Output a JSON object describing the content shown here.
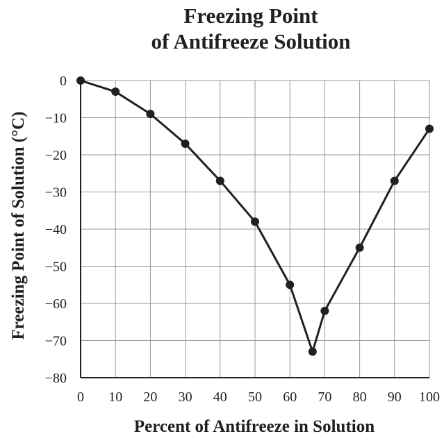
{
  "chart_data": {
    "type": "line",
    "title_lines": [
      "Freezing Point",
      "of Antifreeze Solution"
    ],
    "xlabel": "Percent of Antifreeze in Solution",
    "ylabel": "Freezing Point of Solution (°C)",
    "xlim": [
      0,
      100
    ],
    "ylim": [
      -80,
      0
    ],
    "x_ticks": [
      0,
      10,
      20,
      30,
      40,
      50,
      60,
      70,
      80,
      90,
      100
    ],
    "y_ticks": [
      0,
      -10,
      -20,
      -30,
      -40,
      -50,
      -60,
      -70,
      -80
    ],
    "x_tick_labels": [
      "0",
      "10",
      "20",
      "30",
      "40",
      "50",
      "60",
      "70",
      "80",
      "90",
      "100"
    ],
    "y_tick_labels": [
      "0",
      "−10",
      "−20",
      "−30",
      "−40",
      "−50",
      "−60",
      "−70",
      "−80"
    ],
    "grid": true,
    "series": [
      {
        "x": [
          0,
          10,
          20,
          30,
          40,
          50,
          60,
          66.5,
          70,
          80,
          90,
          100
        ],
        "y": [
          0,
          -3,
          -9,
          -17,
          -27,
          -38,
          -55,
          -73,
          -62,
          -45,
          -27,
          -13
        ]
      }
    ],
    "colors": {
      "line": "#231f20",
      "grid": "#9a9a9a",
      "text": "#231f20"
    }
  }
}
